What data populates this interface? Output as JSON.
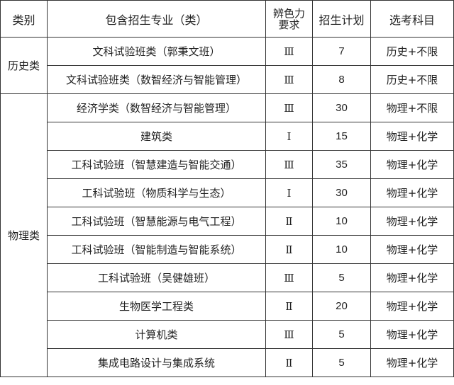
{
  "headers": {
    "category": "类别",
    "major": "包含招生专业（类）",
    "color_vision_line1": "辨色力",
    "color_vision_line2": "要求",
    "plan": "招生计划",
    "subjects": "选考科目"
  },
  "groups": [
    {
      "category": "历史类",
      "rows": [
        {
          "major": "文科试验班类（郭秉文班）",
          "color_vision": "Ⅲ",
          "plan": "7",
          "subjects": "历史+不限"
        },
        {
          "major": "文科试验班类（数智经济与智能管理）",
          "color_vision": "Ⅲ",
          "plan": "8",
          "subjects": "历史+不限"
        }
      ]
    },
    {
      "category": "物理类",
      "rows": [
        {
          "major": "经济学类（数智经济与智能管理）",
          "color_vision": "Ⅲ",
          "plan": "30",
          "subjects": "物理+不限"
        },
        {
          "major": "建筑类",
          "color_vision": "Ⅰ",
          "plan": "15",
          "subjects": "物理+化学"
        },
        {
          "major": "工科试验班（智慧建造与智能交通）",
          "color_vision": "Ⅲ",
          "plan": "35",
          "subjects": "物理+化学"
        },
        {
          "major": "工科试验班（物质科学与生态）",
          "color_vision": "Ⅰ",
          "plan": "30",
          "subjects": "物理+化学"
        },
        {
          "major": "工科试验班（智慧能源与电气工程）",
          "color_vision": "Ⅱ",
          "plan": "10",
          "subjects": "物理+化学"
        },
        {
          "major": "工科试验班（智能制造与智能系统）",
          "color_vision": "Ⅱ",
          "plan": "10",
          "subjects": "物理+化学"
        },
        {
          "major": "工科试验班（吴健雄班）",
          "color_vision": "Ⅲ",
          "plan": "5",
          "subjects": "物理+化学"
        },
        {
          "major": "生物医学工程类",
          "color_vision": "Ⅱ",
          "plan": "20",
          "subjects": "物理+化学"
        },
        {
          "major": "计算机类",
          "color_vision": "Ⅲ",
          "plan": "5",
          "subjects": "物理+化学"
        },
        {
          "major": "集成电路设计与集成系统",
          "color_vision": "Ⅱ",
          "plan": "5",
          "subjects": "物理+化学"
        }
      ]
    }
  ]
}
